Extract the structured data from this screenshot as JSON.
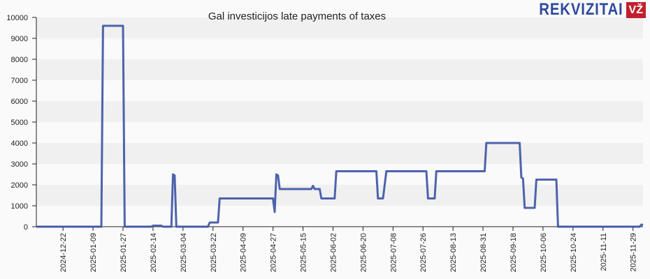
{
  "chart_data": {
    "type": "line",
    "title": "Gal investicijos late payments of taxes",
    "xlabel": "",
    "ylabel": "",
    "xlim": [
      "2024-12-06",
      "2025-12-05"
    ],
    "ylim": [
      0,
      10000
    ],
    "yticks": [
      0,
      1000,
      2000,
      3000,
      4000,
      5000,
      6000,
      7000,
      8000,
      9000,
      10000
    ],
    "xticks": [
      "2024-12-22",
      "2025-01-09",
      "2025-01-27",
      "2025-02-14",
      "2025-03-04",
      "2025-03-22",
      "2025-04-09",
      "2025-04-27",
      "2025-05-15",
      "2025-06-02",
      "2025-06-20",
      "2025-07-08",
      "2025-07-26",
      "2025-08-13",
      "2025-08-31",
      "2025-09-18",
      "2025-10-06",
      "2025-10-24",
      "2025-11-11",
      "2025-11-29"
    ],
    "grid": "horizontal alternating bands",
    "line_color": "#3a53a4",
    "series": [
      {
        "points": [
          [
            "2024-12-06",
            0
          ],
          [
            "2025-01-14",
            0
          ],
          [
            "2025-01-15",
            9600
          ],
          [
            "2025-01-27",
            9600
          ],
          [
            "2025-01-28",
            0
          ],
          [
            "2025-02-13",
            0
          ],
          [
            "2025-02-14",
            50
          ],
          [
            "2025-02-19",
            50
          ],
          [
            "2025-02-20",
            0
          ],
          [
            "2025-02-25",
            0
          ],
          [
            "2025-02-26",
            2500
          ],
          [
            "2025-02-27",
            2450
          ],
          [
            "2025-02-28",
            0
          ],
          [
            "2025-03-19",
            0
          ],
          [
            "2025-03-20",
            200
          ],
          [
            "2025-03-25",
            200
          ],
          [
            "2025-03-26",
            1350
          ],
          [
            "2025-04-27",
            1350
          ],
          [
            "2025-04-28",
            700
          ],
          [
            "2025-04-29",
            2500
          ],
          [
            "2025-04-30",
            2450
          ],
          [
            "2025-05-01",
            1800
          ],
          [
            "2025-05-20",
            1800
          ],
          [
            "2025-05-21",
            1950
          ],
          [
            "2025-05-22",
            1800
          ],
          [
            "2025-05-25",
            1800
          ],
          [
            "2025-05-26",
            1350
          ],
          [
            "2025-06-03",
            1350
          ],
          [
            "2025-06-04",
            2650
          ],
          [
            "2025-06-28",
            2650
          ],
          [
            "2025-06-29",
            1350
          ],
          [
            "2025-07-02",
            1350
          ],
          [
            "2025-07-04",
            2650
          ],
          [
            "2025-07-28",
            2650
          ],
          [
            "2025-07-29",
            1350
          ],
          [
            "2025-08-02",
            1350
          ],
          [
            "2025-08-03",
            2650
          ],
          [
            "2025-09-01",
            2650
          ],
          [
            "2025-09-02",
            4000
          ],
          [
            "2025-09-22",
            4000
          ],
          [
            "2025-09-23",
            2350
          ],
          [
            "2025-09-24",
            2300
          ],
          [
            "2025-09-25",
            900
          ],
          [
            "2025-10-01",
            900
          ],
          [
            "2025-10-02",
            2250
          ],
          [
            "2025-10-14",
            2250
          ],
          [
            "2025-10-15",
            0
          ],
          [
            "2025-12-03",
            0
          ],
          [
            "2025-12-04",
            100
          ],
          [
            "2025-12-05",
            80
          ]
        ]
      }
    ]
  },
  "logo": {
    "text": "REKVIZITAI",
    "badge": "VŽ"
  }
}
